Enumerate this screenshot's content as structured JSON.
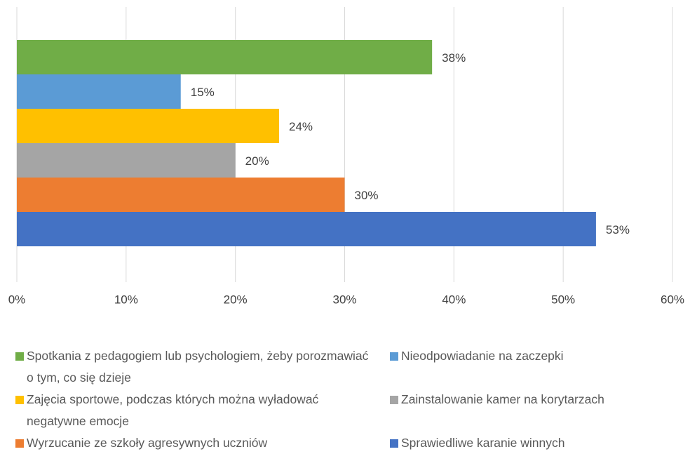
{
  "chart_data": {
    "type": "bar",
    "orientation": "horizontal",
    "series": [
      {
        "name": "Spotkania z pedagogiem lub psychologiem, żeby porozmawiać o tym, co się dzieje",
        "color": "#70ad47",
        "values": [
          38
        ],
        "value_labels": [
          "38%"
        ]
      },
      {
        "name": "Nieodpowiadanie na zaczepki",
        "color": "#5b9bd5",
        "values": [
          15
        ],
        "value_labels": [
          "15%"
        ]
      },
      {
        "name": "Zajęcia sportowe, podczas których można wyładować negatywne emocje",
        "color": "#ffc000",
        "values": [
          24
        ],
        "value_labels": [
          "24%"
        ]
      },
      {
        "name": "Zainstalowanie kamer na korytarzach",
        "color": "#a5a5a5",
        "values": [
          20
        ],
        "value_labels": [
          "20%"
        ]
      },
      {
        "name": "Wyrzucanie ze szkoły agresywnych uczniów",
        "color": "#ed7d31",
        "values": [
          30
        ],
        "value_labels": [
          "30%"
        ]
      },
      {
        "name": "Sprawiedliwe karanie winnych",
        "color": "#4472c4",
        "values": [
          53
        ],
        "value_labels": [
          "53%"
        ]
      }
    ],
    "xlim": [
      0,
      60
    ],
    "xticks": [
      {
        "value": 0,
        "label": "0%"
      },
      {
        "value": 10,
        "label": "10%"
      },
      {
        "value": 20,
        "label": "20%"
      },
      {
        "value": 30,
        "label": "30%"
      },
      {
        "value": 40,
        "label": "40%"
      },
      {
        "value": 50,
        "label": "50%"
      },
      {
        "value": 60,
        "label": "60%"
      }
    ],
    "grid": true,
    "legend": "bottom"
  }
}
